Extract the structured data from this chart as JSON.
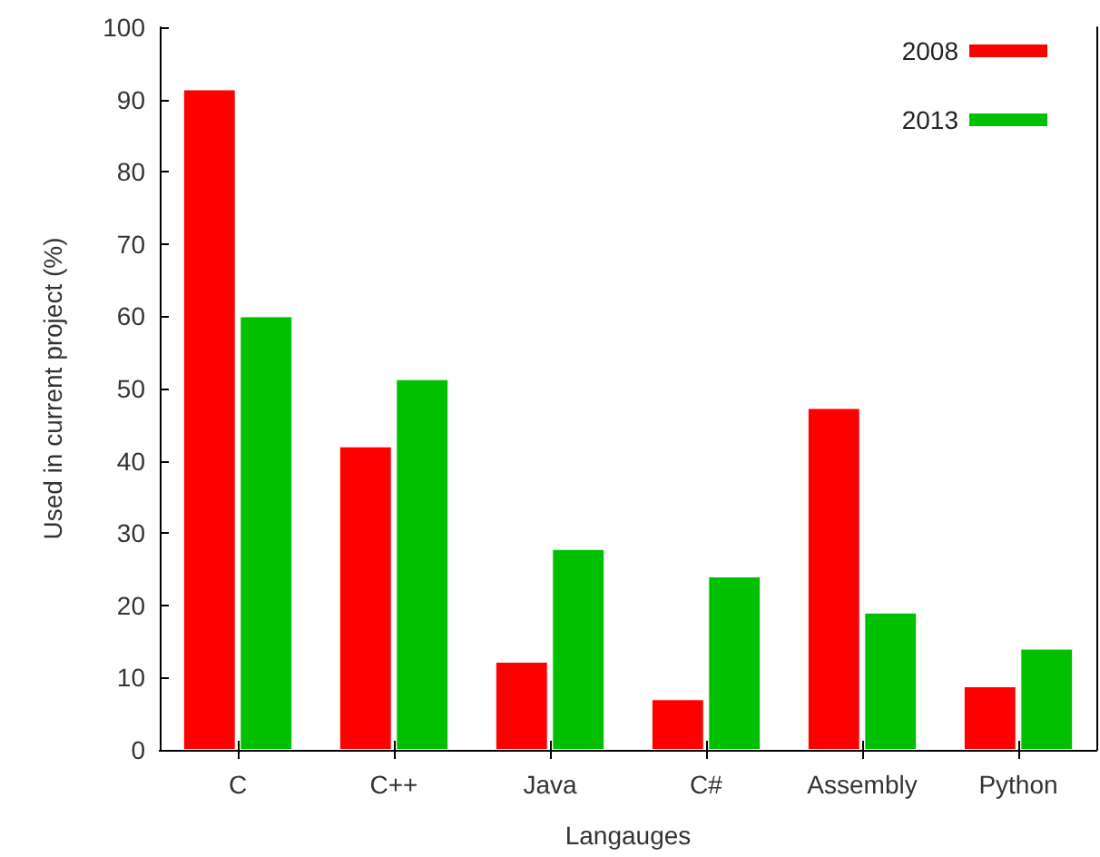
{
  "chart_data": {
    "type": "bar",
    "xlabel": "Langauges",
    "ylabel": "Used in current project (%)",
    "categories": [
      "C",
      "C++",
      "Java",
      "C#",
      "Assembly",
      "Python"
    ],
    "series": [
      {
        "name": "2008",
        "color": "#ff0000",
        "values": [
          91.4,
          42,
          12.2,
          7,
          47.3,
          8.8
        ]
      },
      {
        "name": "2013",
        "color": "#00c000",
        "values": [
          60,
          51.3,
          27.8,
          24,
          19,
          14
        ]
      }
    ],
    "ylim": [
      0,
      100
    ],
    "yticks": [
      0,
      10,
      20,
      30,
      40,
      50,
      60,
      70,
      80,
      90,
      100
    ],
    "grid": false,
    "legend": "top right"
  }
}
